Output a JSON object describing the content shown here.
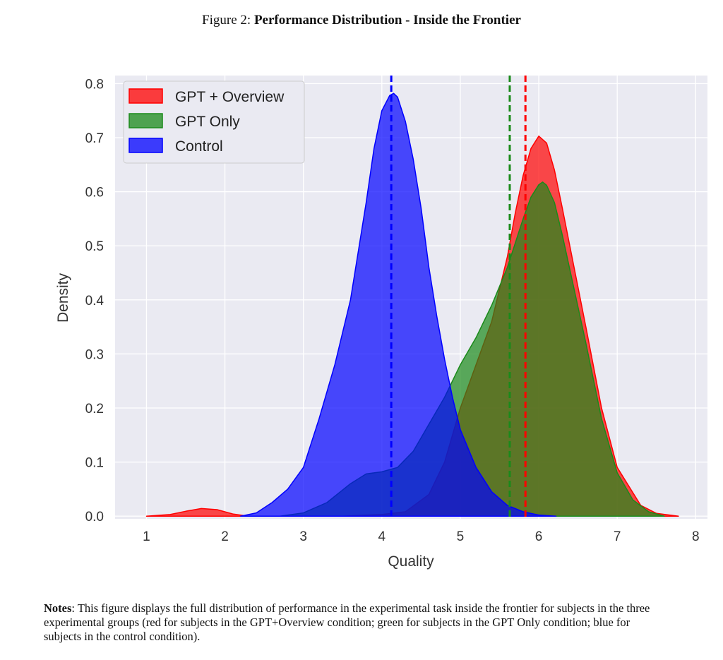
{
  "figure": {
    "prefix": "Figure 2:",
    "title": "Performance Distribution - Inside the Frontier"
  },
  "notes": {
    "label": "Notes",
    "text": ": This figure displays the full distribution of performance in the experimental task inside the frontier for subjects in the three experimental groups (red for subjects in the GPT+Overview condition; green for subjects in the GPT Only condition; blue for subjects in the control condition)."
  },
  "chart_data": {
    "type": "area",
    "xlabel": "Quality",
    "ylabel": "Density",
    "xlim": [
      0.6,
      8.15
    ],
    "ylim": [
      -0.005,
      0.815
    ],
    "xticks": [
      1,
      2,
      3,
      4,
      5,
      6,
      7,
      8
    ],
    "yticks": [
      0.0,
      0.1,
      0.2,
      0.3,
      0.4,
      0.5,
      0.6,
      0.7,
      0.8
    ],
    "ytick_labels": [
      "0.0",
      "0.1",
      "0.2",
      "0.3",
      "0.4",
      "0.5",
      "0.6",
      "0.7",
      "0.8"
    ],
    "grid": true,
    "legend_position": "top-left",
    "series": [
      {
        "name": "GPT + Overview",
        "color": "#ff0000",
        "mean": 5.83,
        "x": [
          1.0,
          1.3,
          1.5,
          1.7,
          1.9,
          2.1,
          2.3,
          2.6,
          3.0,
          3.5,
          4.0,
          4.3,
          4.6,
          4.8,
          5.0,
          5.2,
          5.4,
          5.6,
          5.7,
          5.8,
          5.9,
          6.0,
          6.1,
          6.2,
          6.3,
          6.45,
          6.6,
          6.8,
          7.0,
          7.3,
          7.5,
          7.78
        ],
        "y": [
          0.0,
          0.003,
          0.009,
          0.014,
          0.012,
          0.004,
          0.0,
          0.0,
          0.0,
          0.0,
          0.003,
          0.008,
          0.04,
          0.1,
          0.2,
          0.28,
          0.36,
          0.48,
          0.56,
          0.63,
          0.68,
          0.703,
          0.69,
          0.64,
          0.57,
          0.46,
          0.35,
          0.2,
          0.09,
          0.02,
          0.005,
          0.0
        ]
      },
      {
        "name": "GPT Only",
        "color": "#1a8a1a",
        "mean": 5.63,
        "x": [
          2.7,
          3.0,
          3.3,
          3.6,
          3.8,
          4.0,
          4.2,
          4.4,
          4.6,
          4.8,
          5.0,
          5.2,
          5.4,
          5.6,
          5.8,
          5.9,
          6.0,
          6.05,
          6.1,
          6.2,
          6.3,
          6.45,
          6.6,
          6.8,
          7.0,
          7.2,
          7.4,
          7.6
        ],
        "y": [
          0.0,
          0.006,
          0.025,
          0.06,
          0.078,
          0.082,
          0.09,
          0.12,
          0.17,
          0.22,
          0.28,
          0.33,
          0.39,
          0.46,
          0.55,
          0.59,
          0.613,
          0.618,
          0.612,
          0.58,
          0.52,
          0.42,
          0.32,
          0.18,
          0.08,
          0.03,
          0.008,
          0.0
        ]
      },
      {
        "name": "Control",
        "color": "#0000ff",
        "mean": 4.12,
        "x": [
          2.2,
          2.4,
          2.6,
          2.8,
          3.0,
          3.2,
          3.4,
          3.6,
          3.8,
          3.9,
          4.0,
          4.1,
          4.15,
          4.2,
          4.3,
          4.4,
          4.5,
          4.6,
          4.7,
          4.8,
          4.9,
          5.0,
          5.2,
          5.4,
          5.6,
          5.8,
          6.0,
          6.22
        ],
        "y": [
          0.0,
          0.006,
          0.025,
          0.05,
          0.09,
          0.18,
          0.28,
          0.4,
          0.58,
          0.68,
          0.75,
          0.778,
          0.782,
          0.775,
          0.73,
          0.66,
          0.57,
          0.46,
          0.37,
          0.29,
          0.22,
          0.16,
          0.09,
          0.045,
          0.02,
          0.008,
          0.002,
          0.0
        ]
      }
    ]
  }
}
